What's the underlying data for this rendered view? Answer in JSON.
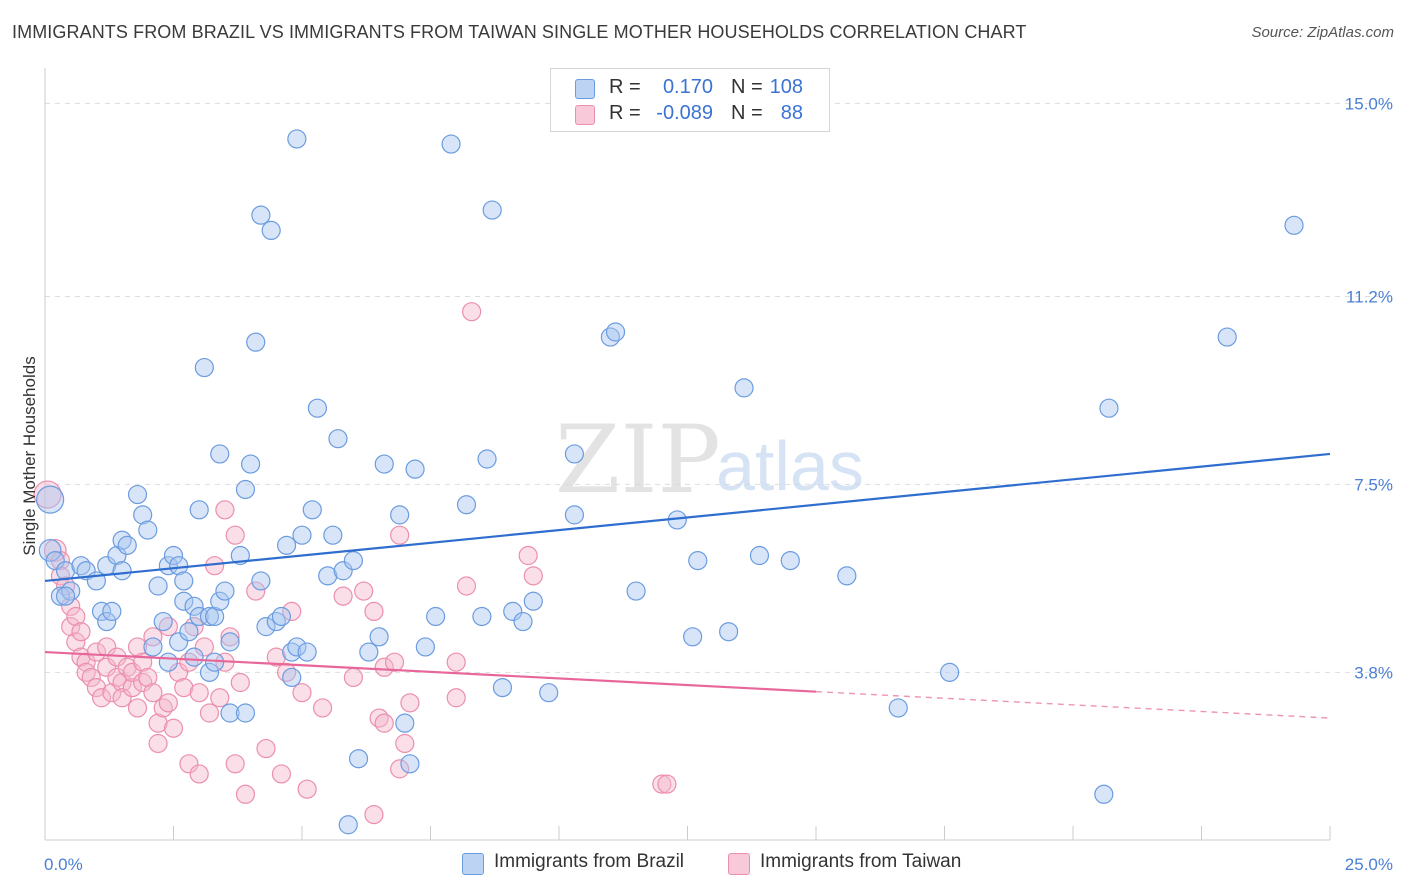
{
  "title": "IMMIGRANTS FROM BRAZIL VS IMMIGRANTS FROM TAIWAN SINGLE MOTHER HOUSEHOLDS CORRELATION CHART",
  "source": "Source: ZipAtlas.com",
  "watermark": {
    "zip": "ZIP",
    "atlas": "atlas"
  },
  "colors": {
    "brazil_fill": "#a9c6f0",
    "brazil_stroke": "#6b9ce0",
    "brazil_line": "#2f6ecf",
    "taiwan_fill": "#f5b9cc",
    "taiwan_stroke": "#ec8fae",
    "taiwan_line": "#e8679a",
    "tick_text": "#4a7fd4",
    "grid": "#dddddd"
  },
  "legend": {
    "rows": [
      {
        "r_label": "R =",
        "r_value": "0.170",
        "n_label": "N =",
        "n_value": "108"
      },
      {
        "r_label": "R =",
        "r_value": "-0.089",
        "n_label": "N =",
        "n_value": "88"
      }
    ]
  },
  "chart_data": {
    "type": "scatter",
    "title": "IMMIGRANTS FROM BRAZIL VS IMMIGRANTS FROM TAIWAN SINGLE MOTHER HOUSEHOLDS CORRELATION CHART",
    "xlabel": "",
    "ylabel": "Single Mother Households",
    "xlim": [
      0,
      25
    ],
    "ylim": [
      0.5,
      15.5
    ],
    "x_tick_labels": [
      "0.0%",
      "25.0%"
    ],
    "y_ticks": [
      3.8,
      7.5,
      11.2,
      15.0
    ],
    "y_tick_labels": [
      "3.8%",
      "7.5%",
      "11.2%",
      "15.0%"
    ],
    "legend_position": "bottom",
    "series": [
      {
        "name": "Immigrants from Brazil",
        "trend": {
          "x": [
            0,
            25
          ],
          "y": [
            5.6,
            8.1
          ],
          "dashed_from": null
        },
        "points": [
          [
            0.1,
            7.2,
            1.5
          ],
          [
            0.1,
            6.2,
            1.2
          ],
          [
            0.2,
            6.0,
            1
          ],
          [
            0.3,
            5.3,
            1
          ],
          [
            0.4,
            5.8,
            1
          ],
          [
            0.5,
            5.4,
            1
          ],
          [
            0.4,
            5.3,
            1
          ],
          [
            0.7,
            5.9,
            1
          ],
          [
            0.8,
            5.8,
            1
          ],
          [
            1.0,
            5.6,
            1
          ],
          [
            1.1,
            5.0,
            1
          ],
          [
            1.2,
            5.9,
            1
          ],
          [
            1.2,
            4.8,
            1
          ],
          [
            1.3,
            5.0,
            1
          ],
          [
            1.4,
            6.1,
            1
          ],
          [
            1.5,
            6.4,
            1
          ],
          [
            1.5,
            5.8,
            1
          ],
          [
            1.6,
            6.3,
            1
          ],
          [
            1.8,
            7.3,
            1
          ],
          [
            1.9,
            6.9,
            1
          ],
          [
            2.0,
            6.6,
            1
          ],
          [
            2.1,
            4.3,
            1
          ],
          [
            2.2,
            5.5,
            1
          ],
          [
            2.3,
            4.8,
            1
          ],
          [
            2.4,
            4.0,
            1
          ],
          [
            2.4,
            5.9,
            1
          ],
          [
            2.5,
            6.1,
            1
          ],
          [
            2.6,
            4.4,
            1
          ],
          [
            2.6,
            5.9,
            1
          ],
          [
            2.7,
            5.6,
            1
          ],
          [
            2.7,
            5.2,
            1
          ],
          [
            2.8,
            4.6,
            1
          ],
          [
            2.9,
            4.1,
            1
          ],
          [
            2.9,
            5.1,
            1
          ],
          [
            3.0,
            7.0,
            1
          ],
          [
            3.0,
            4.9,
            1
          ],
          [
            3.1,
            9.8,
            1
          ],
          [
            3.2,
            4.9,
            1
          ],
          [
            3.2,
            3.8,
            1
          ],
          [
            3.3,
            4.9,
            1
          ],
          [
            3.3,
            4.0,
            1
          ],
          [
            3.4,
            8.1,
            1
          ],
          [
            3.4,
            5.2,
            1
          ],
          [
            3.5,
            5.4,
            1
          ],
          [
            3.6,
            4.4,
            1
          ],
          [
            3.6,
            3.0,
            1
          ],
          [
            3.8,
            6.1,
            1
          ],
          [
            3.9,
            7.4,
            1
          ],
          [
            3.9,
            3.0,
            1
          ],
          [
            4.0,
            7.9,
            1
          ],
          [
            4.1,
            10.3,
            1
          ],
          [
            4.2,
            5.6,
            1
          ],
          [
            4.2,
            12.8,
            1
          ],
          [
            4.3,
            4.7,
            1
          ],
          [
            4.4,
            12.5,
            1
          ],
          [
            4.5,
            4.8,
            1
          ],
          [
            4.6,
            4.9,
            1
          ],
          [
            4.7,
            6.3,
            1
          ],
          [
            4.8,
            3.7,
            1
          ],
          [
            4.8,
            4.2,
            1
          ],
          [
            4.9,
            4.3,
            1
          ],
          [
            4.9,
            14.3,
            1
          ],
          [
            5.0,
            6.5,
            1
          ],
          [
            5.1,
            4.2,
            1
          ],
          [
            5.2,
            7.0,
            1
          ],
          [
            5.3,
            9.0,
            1
          ],
          [
            5.5,
            5.7,
            1
          ],
          [
            5.6,
            6.5,
            1
          ],
          [
            5.7,
            8.4,
            1
          ],
          [
            5.8,
            5.8,
            1
          ],
          [
            5.9,
            0.8,
            1
          ],
          [
            6.0,
            6.0,
            1
          ],
          [
            6.1,
            2.1,
            1
          ],
          [
            6.3,
            4.2,
            1
          ],
          [
            6.5,
            4.5,
            1
          ],
          [
            6.6,
            7.9,
            1
          ],
          [
            6.9,
            6.9,
            1
          ],
          [
            7.0,
            2.8,
            1
          ],
          [
            7.1,
            2.0,
            1
          ],
          [
            7.2,
            7.8,
            1
          ],
          [
            7.4,
            4.3,
            1
          ],
          [
            7.6,
            4.9,
            1
          ],
          [
            7.9,
            14.2,
            1
          ],
          [
            8.2,
            7.1,
            1
          ],
          [
            8.5,
            4.9,
            1
          ],
          [
            8.6,
            8.0,
            1
          ],
          [
            8.7,
            12.9,
            1
          ],
          [
            8.9,
            3.5,
            1
          ],
          [
            9.1,
            5.0,
            1
          ],
          [
            9.3,
            4.8,
            1
          ],
          [
            9.5,
            5.2,
            1
          ],
          [
            9.8,
            3.4,
            1
          ],
          [
            10.3,
            8.1,
            1
          ],
          [
            10.3,
            6.9,
            1
          ],
          [
            11.0,
            10.4,
            1
          ],
          [
            11.1,
            10.5,
            1
          ],
          [
            11.5,
            5.4,
            1
          ],
          [
            12.3,
            6.8,
            1
          ],
          [
            12.6,
            4.5,
            1
          ],
          [
            12.7,
            6.0,
            1
          ],
          [
            13.3,
            4.6,
            1
          ],
          [
            13.6,
            9.4,
            1
          ],
          [
            13.9,
            6.1,
            1
          ],
          [
            14.5,
            6.0,
            1
          ],
          [
            15.6,
            5.7,
            1
          ],
          [
            16.6,
            3.1,
            1
          ],
          [
            17.6,
            3.8,
            1
          ],
          [
            20.6,
            1.4,
            1
          ],
          [
            20.7,
            9.0,
            1
          ],
          [
            23.0,
            10.4,
            1
          ],
          [
            24.3,
            12.6,
            1
          ]
        ]
      },
      {
        "name": "Immigrants from Taiwan",
        "trend": {
          "x": [
            0,
            25
          ],
          "y": [
            4.2,
            2.9
          ],
          "dashed_from": 15.0
        },
        "points": [
          [
            0.05,
            7.3,
            1.5
          ],
          [
            0.2,
            6.2,
            1.2
          ],
          [
            0.3,
            6.0,
            1
          ],
          [
            0.3,
            5.7,
            1
          ],
          [
            0.4,
            5.5,
            1
          ],
          [
            0.5,
            4.7,
            1
          ],
          [
            0.5,
            5.1,
            1
          ],
          [
            0.6,
            4.9,
            1
          ],
          [
            0.6,
            4.4,
            1
          ],
          [
            0.7,
            4.6,
            1
          ],
          [
            0.7,
            4.1,
            1
          ],
          [
            0.8,
            4.0,
            1
          ],
          [
            0.8,
            3.8,
            1
          ],
          [
            0.9,
            3.7,
            1
          ],
          [
            1.0,
            4.2,
            1
          ],
          [
            1.0,
            3.5,
            1
          ],
          [
            1.1,
            3.3,
            1
          ],
          [
            1.2,
            3.9,
            1
          ],
          [
            1.2,
            4.3,
            1
          ],
          [
            1.3,
            3.4,
            1
          ],
          [
            1.4,
            4.1,
            1
          ],
          [
            1.4,
            3.7,
            1
          ],
          [
            1.5,
            3.6,
            1
          ],
          [
            1.5,
            3.3,
            1
          ],
          [
            1.6,
            3.9,
            1
          ],
          [
            1.7,
            3.5,
            1
          ],
          [
            1.7,
            3.8,
            1
          ],
          [
            1.8,
            3.1,
            1
          ],
          [
            1.8,
            4.3,
            1
          ],
          [
            1.9,
            4.0,
            1
          ],
          [
            1.9,
            3.6,
            1
          ],
          [
            2.0,
            3.7,
            1
          ],
          [
            2.1,
            3.4,
            1
          ],
          [
            2.1,
            4.5,
            1
          ],
          [
            2.2,
            2.8,
            1
          ],
          [
            2.2,
            2.4,
            1
          ],
          [
            2.3,
            3.1,
            1
          ],
          [
            2.4,
            3.2,
            1
          ],
          [
            2.4,
            4.7,
            1
          ],
          [
            2.5,
            2.7,
            1
          ],
          [
            2.6,
            3.8,
            1
          ],
          [
            2.7,
            3.5,
            1
          ],
          [
            2.8,
            4.0,
            1
          ],
          [
            2.8,
            2.0,
            1
          ],
          [
            2.9,
            4.7,
            1
          ],
          [
            3.0,
            1.8,
            1
          ],
          [
            3.0,
            3.4,
            1
          ],
          [
            3.1,
            4.3,
            1
          ],
          [
            3.2,
            3.0,
            1
          ],
          [
            3.3,
            5.9,
            1
          ],
          [
            3.4,
            3.3,
            1
          ],
          [
            3.5,
            4.0,
            1
          ],
          [
            3.5,
            7.0,
            1
          ],
          [
            3.6,
            4.5,
            1
          ],
          [
            3.7,
            6.5,
            1
          ],
          [
            3.7,
            2.0,
            1
          ],
          [
            3.8,
            3.6,
            1
          ],
          [
            3.9,
            1.4,
            1
          ],
          [
            4.1,
            5.4,
            1
          ],
          [
            4.3,
            2.3,
            1
          ],
          [
            4.5,
            4.1,
            1
          ],
          [
            4.6,
            1.8,
            1
          ],
          [
            4.7,
            3.8,
            1
          ],
          [
            4.8,
            5.0,
            1
          ],
          [
            5.0,
            3.4,
            1
          ],
          [
            5.1,
            1.5,
            1
          ],
          [
            5.4,
            3.1,
            1
          ],
          [
            5.8,
            5.3,
            1
          ],
          [
            6.0,
            3.7,
            1
          ],
          [
            6.2,
            5.4,
            1
          ],
          [
            6.4,
            5.0,
            1
          ],
          [
            6.5,
            2.9,
            1
          ],
          [
            6.6,
            3.9,
            1
          ],
          [
            6.8,
            4.0,
            1
          ],
          [
            6.9,
            1.9,
            1
          ],
          [
            6.9,
            6.5,
            1
          ],
          [
            7.0,
            2.4,
            1
          ],
          [
            7.1,
            3.2,
            1
          ],
          [
            6.4,
            1.0,
            1
          ],
          [
            8.0,
            4.0,
            1
          ],
          [
            8.0,
            3.3,
            1
          ],
          [
            8.2,
            5.5,
            1
          ],
          [
            8.3,
            10.9,
            1
          ],
          [
            9.4,
            6.1,
            1
          ],
          [
            9.5,
            5.7,
            1
          ],
          [
            12.0,
            1.6,
            1
          ],
          [
            12.1,
            1.6,
            1
          ],
          [
            6.6,
            2.8,
            1
          ]
        ]
      }
    ]
  },
  "bottom_legend": [
    "Immigrants from Brazil",
    "Immigrants from Taiwan"
  ]
}
